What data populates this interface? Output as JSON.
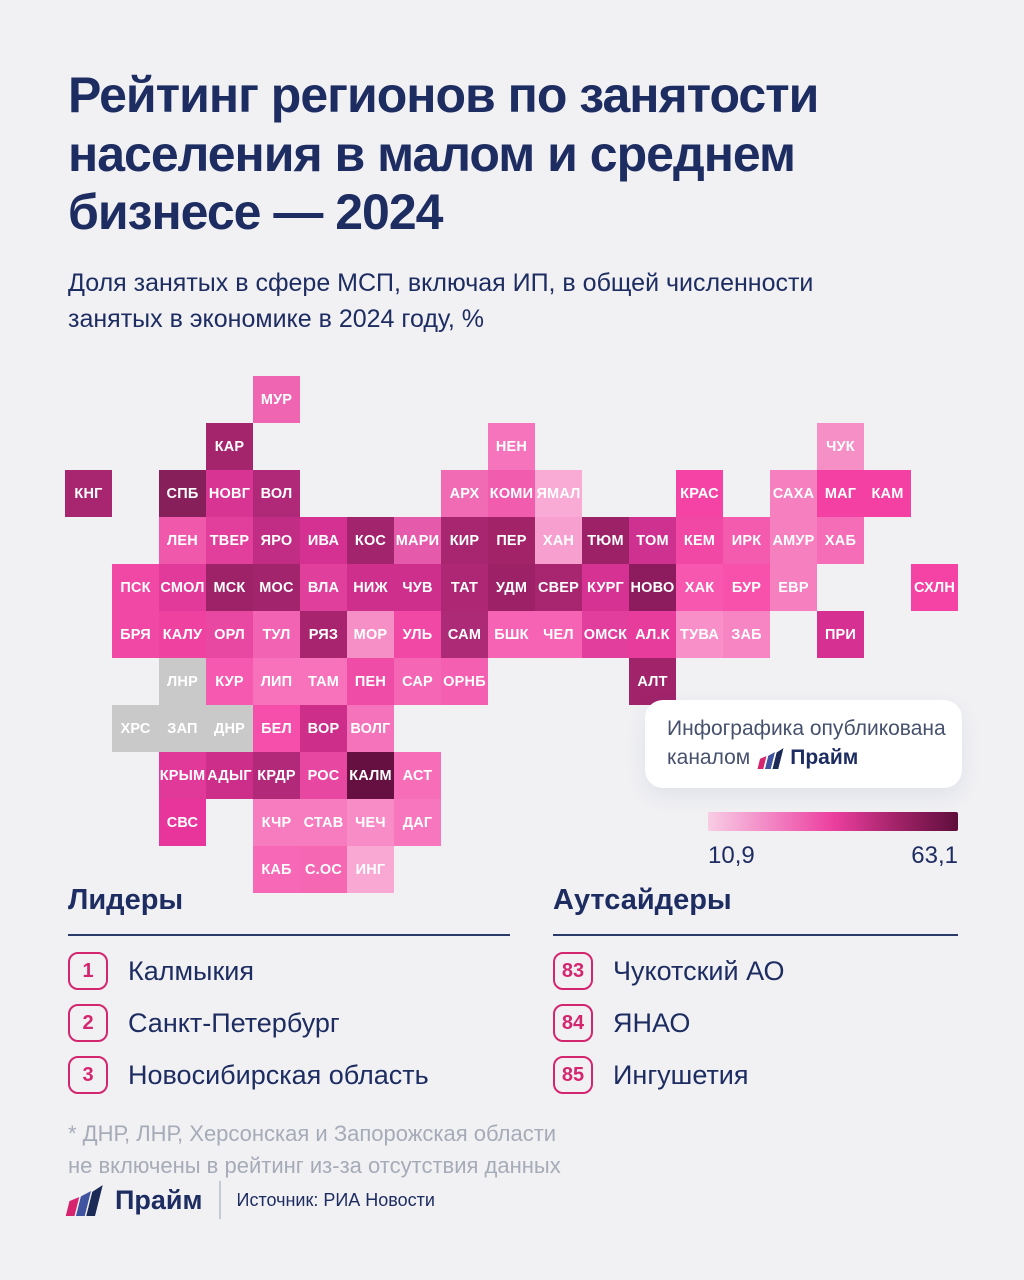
{
  "header": {
    "title": "Рейтинг регионов по занятости\nнаселения в малом и среднем\nбизнесе — 2024",
    "subtitle": "Доля занятых в сфере МСП, включая ИП, в общей численности\nзанятых в экономике в 2024 году, %"
  },
  "chart_data": {
    "type": "heatmap",
    "title": "Рейтинг регионов по занятости населения в малом и среднем бизнесе — 2024",
    "unit": "%",
    "legend": {
      "min": 10.9,
      "max": 63.1,
      "min_label": "10,9",
      "max_label": "63,1",
      "gradient": [
        "#f8cde4",
        "#f285c4",
        "#ec3f9f",
        "#a32369",
        "#5f0e3c"
      ]
    },
    "no_data_color": "#c9c9c9",
    "tiles": [
      {
        "code": "МУР",
        "col": 5,
        "row": 1,
        "color": "#f065b2"
      },
      {
        "code": "КАР",
        "col": 4,
        "row": 2,
        "color": "#a5256d"
      },
      {
        "code": "НЕН",
        "col": 10,
        "row": 2,
        "color": "#f574bc"
      },
      {
        "code": "ЧУК",
        "col": 17,
        "row": 2,
        "color": "#f78fc7"
      },
      {
        "code": "КНГ",
        "col": 1,
        "row": 3,
        "color": "#a82670"
      },
      {
        "code": "СПБ",
        "col": 3,
        "row": 3,
        "color": "#87205a"
      },
      {
        "code": "НОВГ",
        "col": 4,
        "row": 3,
        "color": "#d73494"
      },
      {
        "code": "ВОЛ",
        "col": 5,
        "row": 3,
        "color": "#b02878"
      },
      {
        "code": "АРХ",
        "col": 9,
        "row": 3,
        "color": "#f16ab4"
      },
      {
        "code": "КОМИ",
        "col": 10,
        "row": 3,
        "color": "#f25cae"
      },
      {
        "code": "ЯМАЛ",
        "col": 11,
        "row": 3,
        "color": "#f9aad5"
      },
      {
        "code": "КРАС",
        "col": 14,
        "row": 3,
        "color": "#f443a4"
      },
      {
        "code": "САХА",
        "col": 16,
        "row": 3,
        "color": "#f67fc0"
      },
      {
        "code": "МАГ",
        "col": 17,
        "row": 3,
        "color": "#f440a3"
      },
      {
        "code": "КАМ",
        "col": 18,
        "row": 3,
        "color": "#f440a3"
      },
      {
        "code": "ЛЕН",
        "col": 3,
        "row": 4,
        "color": "#f058ac"
      },
      {
        "code": "ТВЕР",
        "col": 4,
        "row": 4,
        "color": "#e23f9c"
      },
      {
        "code": "ЯРО",
        "col": 5,
        "row": 4,
        "color": "#c12c84"
      },
      {
        "code": "ИВА",
        "col": 6,
        "row": 4,
        "color": "#d53192"
      },
      {
        "code": "КОС",
        "col": 7,
        "row": 4,
        "color": "#a2246c"
      },
      {
        "code": "МАРИ",
        "col": 8,
        "row": 4,
        "color": "#e65aab"
      },
      {
        "code": "КИР",
        "col": 9,
        "row": 4,
        "color": "#a8266f"
      },
      {
        "code": "ПЕР",
        "col": 10,
        "row": 4,
        "color": "#a32369"
      },
      {
        "code": "ХАН",
        "col": 11,
        "row": 4,
        "color": "#f7a0d0"
      },
      {
        "code": "ТЮМ",
        "col": 12,
        "row": 4,
        "color": "#9c2166"
      },
      {
        "code": "ТОМ",
        "col": 13,
        "row": 4,
        "color": "#cf3190"
      },
      {
        "code": "КЕМ",
        "col": 14,
        "row": 4,
        "color": "#f148a5"
      },
      {
        "code": "ИРК",
        "col": 15,
        "row": 4,
        "color": "#f45aad"
      },
      {
        "code": "АМУР",
        "col": 16,
        "row": 4,
        "color": "#f67fc0"
      },
      {
        "code": "ХАБ",
        "col": 17,
        "row": 4,
        "color": "#f46db6"
      },
      {
        "code": "ПСК",
        "col": 2,
        "row": 5,
        "color": "#f148a5"
      },
      {
        "code": "СМОЛ",
        "col": 3,
        "row": 5,
        "color": "#e23a9b"
      },
      {
        "code": "МСК",
        "col": 4,
        "row": 5,
        "color": "#9e2268"
      },
      {
        "code": "МОС",
        "col": 5,
        "row": 5,
        "color": "#a2246c"
      },
      {
        "code": "ВЛА",
        "col": 6,
        "row": 5,
        "color": "#e0409c"
      },
      {
        "code": "НИЖ",
        "col": 7,
        "row": 5,
        "color": "#cf2f8c"
      },
      {
        "code": "ЧУВ",
        "col": 8,
        "row": 5,
        "color": "#cf2f8c"
      },
      {
        "code": "ТАТ",
        "col": 9,
        "row": 5,
        "color": "#ad2775"
      },
      {
        "code": "УДМ",
        "col": 10,
        "row": 5,
        "color": "#9c2166"
      },
      {
        "code": "СВЕР",
        "col": 11,
        "row": 5,
        "color": "#a8256f"
      },
      {
        "code": "КУРГ",
        "col": 12,
        "row": 5,
        "color": "#d63293"
      },
      {
        "code": "НОВО",
        "col": 13,
        "row": 5,
        "color": "#8c1c5e"
      },
      {
        "code": "ХАК",
        "col": 14,
        "row": 5,
        "color": "#f757af"
      },
      {
        "code": "БУР",
        "col": 15,
        "row": 5,
        "color": "#f851ab"
      },
      {
        "code": "ЕВР",
        "col": 16,
        "row": 5,
        "color": "#f67fc0"
      },
      {
        "code": "СХЛН",
        "col": 19,
        "row": 5,
        "color": "#f443a4"
      },
      {
        "code": "БРЯ",
        "col": 2,
        "row": 6,
        "color": "#f148a5"
      },
      {
        "code": "КАЛУ",
        "col": 3,
        "row": 6,
        "color": "#ee41a0"
      },
      {
        "code": "ОРЛ",
        "col": 4,
        "row": 6,
        "color": "#e847a2"
      },
      {
        "code": "ТУЛ",
        "col": 5,
        "row": 6,
        "color": "#f263b3"
      },
      {
        "code": "РЯЗ",
        "col": 6,
        "row": 6,
        "color": "#a8246e"
      },
      {
        "code": "МОР",
        "col": 7,
        "row": 6,
        "color": "#f78fc7"
      },
      {
        "code": "УЛЬ",
        "col": 8,
        "row": 6,
        "color": "#f148a5"
      },
      {
        "code": "САМ",
        "col": 9,
        "row": 6,
        "color": "#ad2a77"
      },
      {
        "code": "БШК",
        "col": 10,
        "row": 6,
        "color": "#f763b4"
      },
      {
        "code": "ЧЕЛ",
        "col": 11,
        "row": 6,
        "color": "#f763b4"
      },
      {
        "code": "ОМСК",
        "col": 12,
        "row": 6,
        "color": "#e23e9d"
      },
      {
        "code": "АЛ.К",
        "col": 13,
        "row": 6,
        "color": "#e83c9d"
      },
      {
        "code": "ТУВА",
        "col": 14,
        "row": 6,
        "color": "#f98fc8"
      },
      {
        "code": "ЗАБ",
        "col": 15,
        "row": 6,
        "color": "#f885c3"
      },
      {
        "code": "ПРИ",
        "col": 17,
        "row": 6,
        "color": "#d63092"
      },
      {
        "code": "ЛНР",
        "col": 3,
        "row": 7,
        "color": "#c9c9c9",
        "no_data": true
      },
      {
        "code": "КУР",
        "col": 4,
        "row": 7,
        "color": "#f65ab0"
      },
      {
        "code": "ЛИП",
        "col": 5,
        "row": 7,
        "color": "#f772ba"
      },
      {
        "code": "ТАМ",
        "col": 6,
        "row": 7,
        "color": "#f772ba"
      },
      {
        "code": "ПЕН",
        "col": 7,
        "row": 7,
        "color": "#ef4ca7"
      },
      {
        "code": "САР",
        "col": 8,
        "row": 7,
        "color": "#f567b4"
      },
      {
        "code": "ОРНБ",
        "col": 9,
        "row": 7,
        "color": "#f45fb1"
      },
      {
        "code": "АЛТ",
        "col": 13,
        "row": 7,
        "color": "#a1246b"
      },
      {
        "code": "ХРС",
        "col": 2,
        "row": 8,
        "color": "#c9c9c9",
        "no_data": true
      },
      {
        "code": "ЗАП",
        "col": 3,
        "row": 8,
        "color": "#c9c9c9",
        "no_data": true
      },
      {
        "code": "ДНР",
        "col": 4,
        "row": 8,
        "color": "#c9c9c9",
        "no_data": true
      },
      {
        "code": "БЕЛ",
        "col": 5,
        "row": 8,
        "color": "#f54fab"
      },
      {
        "code": "ВОР",
        "col": 6,
        "row": 8,
        "color": "#cc2e8a"
      },
      {
        "code": "ВОЛГ",
        "col": 7,
        "row": 8,
        "color": "#f573bb"
      },
      {
        "code": "КРЫМ",
        "col": 3,
        "row": 9,
        "color": "#e0399a"
      },
      {
        "code": "АДЫГ",
        "col": 4,
        "row": 9,
        "color": "#cc2e8a"
      },
      {
        "code": "КРДР",
        "col": 5,
        "row": 9,
        "color": "#b2297a"
      },
      {
        "code": "РОС",
        "col": 6,
        "row": 9,
        "color": "#e747a1"
      },
      {
        "code": "КАЛМ",
        "col": 7,
        "row": 9,
        "color": "#661041"
      },
      {
        "code": "АСТ",
        "col": 8,
        "row": 9,
        "color": "#f76db8"
      },
      {
        "code": "СВС",
        "col": 3,
        "row": 10,
        "color": "#e8359c"
      },
      {
        "code": "КЧР",
        "col": 5,
        "row": 10,
        "color": "#f77bbf"
      },
      {
        "code": "СТАВ",
        "col": 6,
        "row": 10,
        "color": "#f77bbf"
      },
      {
        "code": "ЧЕЧ",
        "col": 7,
        "row": 10,
        "color": "#f88cc7"
      },
      {
        "code": "ДАГ",
        "col": 8,
        "row": 10,
        "color": "#f776bd"
      },
      {
        "code": "КАБ",
        "col": 5,
        "row": 11,
        "color": "#f768b6"
      },
      {
        "code": "С.ОС",
        "col": 6,
        "row": 11,
        "color": "#f567b3"
      },
      {
        "code": "ИНГ",
        "col": 7,
        "row": 11,
        "color": "#f9a8d4"
      }
    ]
  },
  "info_card": {
    "line1": "Инфографика опубликована",
    "line2_prefix": "каналом",
    "brand": "Прайм"
  },
  "legend": {
    "min_label": "10,9",
    "max_label": "63,1"
  },
  "leaders": {
    "heading": "Лидеры",
    "items": [
      {
        "rank": "1",
        "name": "Калмыкия"
      },
      {
        "rank": "2",
        "name": "Санкт-Петербург"
      },
      {
        "rank": "3",
        "name": "Новосибирская область"
      }
    ]
  },
  "outsiders": {
    "heading": "Аутсайдеры",
    "items": [
      {
        "rank": "83",
        "name": "Чукотский АО"
      },
      {
        "rank": "84",
        "name": "ЯНАО"
      },
      {
        "rank": "85",
        "name": "Ингушетия"
      }
    ]
  },
  "footnote": "* ДНР, ЛНР, Херсонская и Запорожская области\nне включены в рейтинг из-за отсутствия данных",
  "footer": {
    "brand": "Прайм",
    "source": "Источник: РИА Новости"
  },
  "colors": {
    "accent_navy": "#1e2d61",
    "accent_crimson": "#d4266f",
    "logo_pink": "#d6256e",
    "logo_blue": "#4053a0",
    "logo_navy": "#1c2a58"
  }
}
